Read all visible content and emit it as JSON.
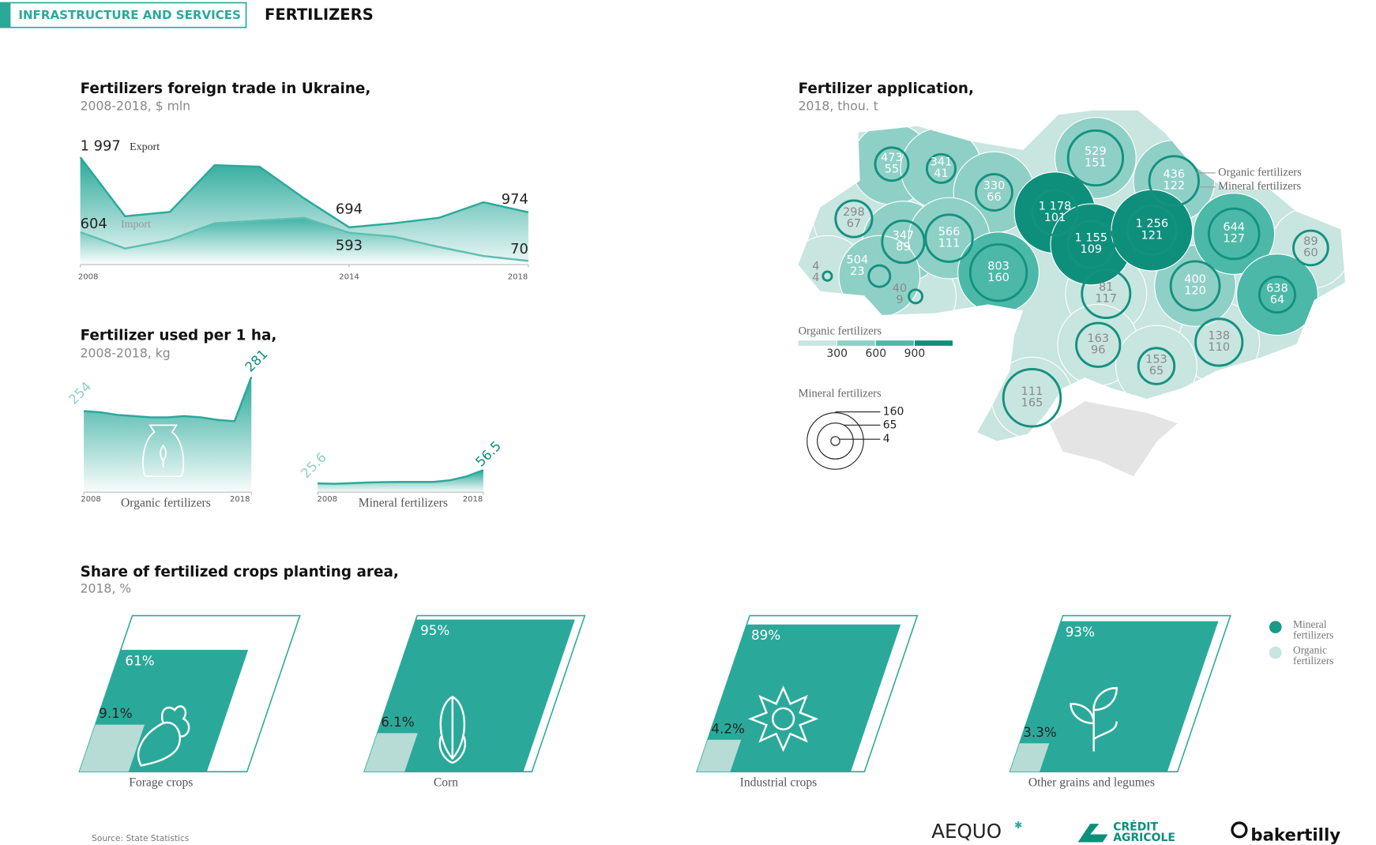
{
  "header": {
    "section": "INFRASTRUCTURE AND SERVICES",
    "title": "FERTILIZERS"
  },
  "chart_data": [
    {
      "type": "area",
      "title": "Fertilizers foreign trade in Ukraine,",
      "subtitle": "2008-2018, $ mln",
      "x": [
        2008,
        2009,
        2010,
        2011,
        2012,
        2013,
        2014,
        2015,
        2016,
        2017,
        2018
      ],
      "xlim": [
        2008,
        2018
      ],
      "xticks": [
        2008,
        2014,
        2018
      ],
      "ylim": [
        0,
        2000
      ],
      "series": [
        {
          "name": "Export",
          "color": "#2aa99a",
          "values": [
            1997,
            900,
            980,
            1850,
            1820,
            1230,
            694,
            770,
            870,
            1160,
            974
          ],
          "value_labels": [
            "1 997",
            null,
            null,
            null,
            null,
            null,
            "694",
            null,
            null,
            null,
            "974"
          ]
        },
        {
          "name": "Import",
          "color": "#5fbfb1",
          "values": [
            604,
            300,
            460,
            770,
            820,
            870,
            593,
            520,
            330,
            160,
            70
          ],
          "value_labels": [
            "604",
            null,
            null,
            null,
            null,
            null,
            "593",
            null,
            null,
            null,
            "70"
          ]
        }
      ]
    },
    {
      "type": "area",
      "title": "Fertilizer used per 1 ha,",
      "subtitle": "2008-2018, kg",
      "label": "Organic fertilizers",
      "x": [
        2008,
        2009,
        2010,
        2011,
        2012,
        2013,
        2014,
        2015,
        2016,
        2017,
        2018
      ],
      "xlim": [
        2008,
        2018
      ],
      "xticks": [
        2008,
        2018
      ],
      "ylim": [
        190,
        290
      ],
      "color": "#2aa99a",
      "values": [
        254,
        253,
        251,
        250,
        249,
        249,
        250,
        249,
        247,
        246,
        281
      ]
    },
    {
      "type": "area",
      "label": "Mineral fertilizers",
      "x": [
        2008,
        2009,
        2010,
        2011,
        2012,
        2013,
        2014,
        2015,
        2016,
        2017,
        2018
      ],
      "xlim": [
        2008,
        2018
      ],
      "xticks": [
        2008,
        2018
      ],
      "ylim": [
        5,
        105
      ],
      "color": "#2aa99a",
      "values": [
        25.6,
        24.6,
        26,
        27.5,
        28.5,
        29,
        29,
        29,
        33,
        42,
        56.5
      ]
    },
    {
      "type": "parallelogram",
      "title": "Share of fertilized crops planting area,",
      "subtitle": "2018, %",
      "categories": [
        "Forage crops",
        "Corn",
        "Industrial crops",
        "Other grains and legumes"
      ],
      "ylim": [
        0,
        100
      ],
      "series": [
        {
          "name": "Mineral fertilizers",
          "color": "#2aa99a",
          "values": [
            61,
            95,
            89,
            93
          ],
          "value_labels": [
            "61%",
            "95%",
            "89%",
            "93%"
          ]
        },
        {
          "name": "Organic fertilizers",
          "color": "#b7dcd6",
          "values": [
            9.1,
            6.1,
            4.2,
            3.3
          ],
          "value_labels": [
            "9.1%",
            "6.1%",
            "4.2%",
            "3.3%"
          ]
        }
      ]
    }
  ],
  "map": {
    "title": "Fertilizer application,",
    "subtitle": "2018, thou. t",
    "organic_label": "Organic fertilizers",
    "mineral_label": "Mineral fertilizers",
    "organic_values": [
      473,
      341,
      330,
      298,
      347,
      566,
      803,
      4,
      504,
      40,
      1178,
      1155,
      529,
      436,
      1256,
      644,
      89,
      81,
      400,
      638,
      163,
      138,
      153,
      111
    ],
    "organic_labels": [
      "473",
      "341",
      "330",
      "298",
      "347",
      "566",
      "803",
      "4",
      "504",
      "40",
      "1 178",
      "1 155",
      "529",
      "436",
      "1 256",
      "644",
      "89",
      "81",
      "400",
      "638",
      "163",
      "138",
      "153",
      "111"
    ],
    "mineral_values": [
      55,
      41,
      66,
      67,
      89,
      111,
      160,
      4,
      23,
      9,
      101,
      109,
      151,
      122,
      121,
      127,
      60,
      117,
      120,
      64,
      96,
      110,
      65,
      165
    ],
    "organic_breaks": [
      300,
      600,
      900
    ],
    "organic_colors": [
      "#c8e5e0",
      "#8fd0c6",
      "#4cb8a8",
      "#0e8f7c"
    ],
    "mineral_sizes": [
      160,
      65,
      4
    ]
  },
  "footer": {
    "source": "Source: State Statistics",
    "logos": [
      "AEQUO",
      "CRÉDIT",
      "AGRICOLE",
      "bakertilly"
    ]
  }
}
